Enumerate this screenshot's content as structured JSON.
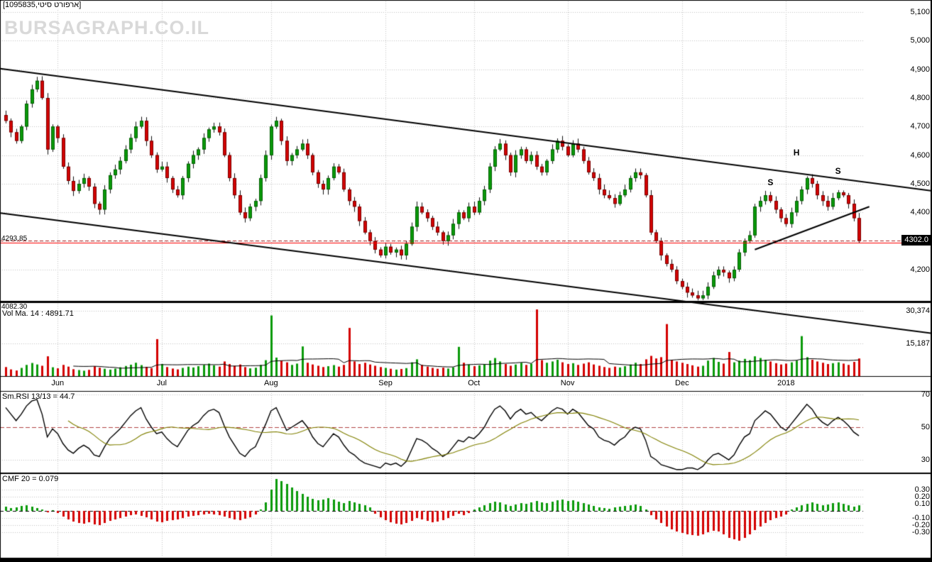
{
  "header": {
    "title": "[1095835,ארפורט סיטי]",
    "watermark": "BURSAGRAPH.CO.IL"
  },
  "price_panel": {
    "axis_labels": [
      {
        "label": "5,100",
        "value": 5100
      },
      {
        "label": "5,000",
        "value": 5000
      },
      {
        "label": "4,900",
        "value": 4900
      },
      {
        "label": "4,800",
        "value": 4800
      },
      {
        "label": "4,700",
        "value": 4700
      },
      {
        "label": "4,600",
        "value": 4600
      },
      {
        "label": "4,500",
        "value": 4500
      },
      {
        "label": "4,400",
        "value": 4400
      },
      {
        "label": "4,200",
        "value": 4200
      }
    ],
    "grid_levels": [
      4200,
      4300,
      4400,
      4500,
      4600,
      4700,
      4800,
      4900,
      5000,
      5100
    ],
    "last_price_label": "4302.0",
    "last_price": 4302.0,
    "support_label": "4293.85",
    "support_price": 4293.85,
    "low_label": "4082.30",
    "price_lines": [
      {
        "value": 4302.0,
        "color": "#aa2222",
        "style": "dashed"
      },
      {
        "value": 4293.85,
        "color": "#ff0000",
        "style": "solid"
      }
    ],
    "trendlines": [
      {
        "i1": -1,
        "p1": 4902,
        "i2": 179,
        "p2": 4473
      },
      {
        "i1": -1,
        "p1": 4398,
        "i2": 179,
        "p2": 3975
      },
      {
        "i1": 144,
        "p1": 4270,
        "i2": 166,
        "p2": 4420
      }
    ],
    "pattern_labels": [
      {
        "text": "S",
        "index": 147,
        "price": 4505
      },
      {
        "text": "H",
        "index": 152,
        "price": 4610
      },
      {
        "text": "S",
        "index": 160,
        "price": 4545
      }
    ]
  },
  "volume_panel": {
    "label": "Vol Ma. 14 : 4891.71",
    "axis_max": 30374,
    "axis_labels": [
      {
        "label": "30,374",
        "value": 30374
      },
      {
        "label": "15,187",
        "value": 15187
      }
    ]
  },
  "rsi_panel": {
    "label": "Sm.RSI 13/13 = 44.7",
    "axis_labels": [
      {
        "label": "70",
        "value": 70
      },
      {
        "label": "50",
        "value": 50
      },
      {
        "label": "30",
        "value": 30
      }
    ],
    "mid_value": 50,
    "grid_values": [
      70,
      30
    ]
  },
  "cmf_panel": {
    "label": "CMF 20 = 0.079",
    "axis_labels": [
      {
        "label": "0.30",
        "value": 0.3
      },
      {
        "label": "0.20",
        "value": 0.2
      },
      {
        "label": "0.10",
        "value": 0.1
      },
      {
        "label": "-0.10",
        "value": -0.1
      },
      {
        "label": "-0.20",
        "value": -0.2
      },
      {
        "label": "-0.30",
        "value": -0.3
      }
    ],
    "grid_values": [
      0.3,
      0.2,
      0.1,
      -0.1,
      -0.2,
      -0.3
    ]
  },
  "x_axis": {
    "months": [
      {
        "label": "Jun",
        "index": 10
      },
      {
        "label": "Jul",
        "index": 30
      },
      {
        "label": "Aug",
        "index": 51
      },
      {
        "label": "Sep",
        "index": 73
      },
      {
        "label": "Oct",
        "index": 90
      },
      {
        "label": "Nov",
        "index": 108
      },
      {
        "label": "Dec",
        "index": 130
      },
      {
        "label": "2018",
        "index": 150
      }
    ]
  },
  "colors": {
    "up": "#0a9a0a",
    "up_edge": "#056005",
    "down": "#d40000",
    "down_edge": "#7a0000",
    "wick": "#111111",
    "trend": "#000000",
    "grid": "#c4c4c4",
    "rsi": "#000000",
    "rsi_signal": "#808000",
    "rsi_mid": "#b24444",
    "volume_ma": "#000000",
    "zero_line": "#000000"
  },
  "chart_data": [
    {
      "type": "candlestick",
      "name": "price",
      "title": "[1095835,ארפורט סיטי]",
      "ylim": [
        4080,
        5150
      ],
      "first_open": 4740,
      "closes": [
        4720,
        4680,
        4650,
        4700,
        4780,
        4830,
        4860,
        4800,
        4620,
        4700,
        4660,
        4560,
        4510,
        4475,
        4500,
        4520,
        4490,
        4430,
        4410,
        4480,
        4530,
        4550,
        4580,
        4620,
        4660,
        4700,
        4720,
        4650,
        4600,
        4550,
        4560,
        4520,
        4480,
        4460,
        4520,
        4570,
        4600,
        4620,
        4660,
        4690,
        4700,
        4680,
        4600,
        4520,
        4460,
        4400,
        4380,
        4420,
        4440,
        4520,
        4600,
        4700,
        4720,
        4650,
        4580,
        4600,
        4620,
        4640,
        4600,
        4540,
        4500,
        4480,
        4520,
        4560,
        4540,
        4480,
        4440,
        4420,
        4370,
        4330,
        4300,
        4270,
        4250,
        4280,
        4260,
        4270,
        4250,
        4290,
        4350,
        4420,
        4400,
        4380,
        4350,
        4330,
        4300,
        4320,
        4360,
        4400,
        4380,
        4420,
        4400,
        4440,
        4480,
        4560,
        4620,
        4640,
        4600,
        4540,
        4600,
        4620,
        4580,
        4600,
        4560,
        4540,
        4580,
        4620,
        4650,
        4630,
        4600,
        4640,
        4620,
        4580,
        4540,
        4520,
        4480,
        4460,
        4450,
        4430,
        4460,
        4480,
        4520,
        4540,
        4530,
        4460,
        4330,
        4300,
        4250,
        4220,
        4200,
        4160,
        4140,
        4120,
        4110,
        4100,
        4110,
        4140,
        4180,
        4200,
        4190,
        4170,
        4200,
        4260,
        4300,
        4320,
        4420,
        4440,
        4460,
        4440,
        4410,
        4380,
        4360,
        4400,
        4440,
        4480,
        4520,
        4500,
        4460,
        4440,
        4420,
        4450,
        4470,
        4460,
        4430,
        4380,
        4302
      ]
    },
    {
      "type": "bar",
      "name": "volume",
      "ylim": [
        0,
        31000
      ],
      "values": [
        4200,
        3100,
        2600,
        3800,
        5200,
        6100,
        5400,
        4800,
        9200,
        4100,
        3600,
        5200,
        4400,
        3200,
        2800,
        2500,
        2900,
        4600,
        3900,
        3400,
        3000,
        3500,
        4100,
        4700,
        5300,
        6200,
        5100,
        4300,
        3700,
        17200,
        5600,
        4200,
        3500,
        3100,
        3800,
        4400,
        4000,
        4600,
        5200,
        5800,
        5000,
        4400,
        6800,
        5600,
        4800,
        5400,
        4200,
        3600,
        3900,
        5200,
        7400,
        28200,
        8600,
        7200,
        6400,
        5200,
        5800,
        13800,
        6200,
        5400,
        4800,
        4200,
        4600,
        5100,
        4400,
        5200,
        22400,
        6800,
        5600,
        6200,
        5400,
        4800,
        4200,
        3800,
        3400,
        3000,
        3300,
        3700,
        6400,
        7800,
        5200,
        4400,
        3800,
        3400,
        3900,
        3500,
        4100,
        13600,
        6200,
        5400,
        4600,
        5000,
        5600,
        7200,
        8400,
        6800,
        5600,
        4800,
        5400,
        6200,
        5200,
        5800,
        31000,
        7400,
        6200,
        6800,
        7600,
        6400,
        5600,
        6000,
        5200,
        5800,
        6400,
        5400,
        4800,
        4200,
        3800,
        4400,
        4000,
        4600,
        5400,
        6200,
        5600,
        7800,
        9400,
        8200,
        8800,
        24200,
        7600,
        6800,
        6200,
        5600,
        5000,
        4400,
        4800,
        7200,
        8400,
        6600,
        5800,
        11200,
        6400,
        7200,
        8000,
        7400,
        9200,
        8400,
        7600,
        6800,
        6000,
        5400,
        5800,
        6400,
        7200,
        18600,
        8800,
        7600,
        6800,
        6200,
        5600,
        6000,
        6400,
        5800,
        5200,
        6600,
        8200
      ]
    },
    {
      "type": "line",
      "name": "Sm.RSI 13/13",
      "ylim": [
        20,
        80
      ],
      "final": 44.7,
      "values": [
        62,
        58,
        54,
        58,
        63,
        66,
        67,
        58,
        44,
        49,
        46,
        40,
        36,
        34,
        37,
        39,
        37,
        33,
        32,
        38,
        43,
        46,
        49,
        53,
        57,
        60,
        62,
        55,
        50,
        46,
        47,
        43,
        40,
        38,
        43,
        48,
        51,
        53,
        57,
        60,
        61,
        59,
        51,
        44,
        39,
        34,
        32,
        36,
        38,
        45,
        52,
        60,
        62,
        55,
        48,
        50,
        52,
        54,
        50,
        44,
        40,
        38,
        42,
        46,
        44,
        39,
        35,
        33,
        30,
        28,
        27,
        26,
        25,
        28,
        27,
        28,
        26,
        29,
        36,
        43,
        42,
        40,
        37,
        35,
        32,
        34,
        38,
        42,
        41,
        44,
        43,
        46,
        50,
        56,
        61,
        63,
        60,
        55,
        59,
        61,
        58,
        59,
        56,
        54,
        57,
        60,
        62,
        61,
        58,
        61,
        59,
        55,
        51,
        49,
        44,
        42,
        41,
        39,
        42,
        44,
        48,
        50,
        49,
        42,
        32,
        30,
        27,
        26,
        25,
        24,
        24,
        25,
        25,
        24,
        26,
        30,
        33,
        34,
        32,
        30,
        33,
        39,
        44,
        46,
        54,
        57,
        60,
        58,
        54,
        50,
        48,
        52,
        56,
        60,
        64,
        61,
        56,
        53,
        51,
        54,
        56,
        54,
        51,
        47,
        44.7
      ]
    },
    {
      "type": "bar",
      "name": "CMF 20",
      "ylim": [
        -0.45,
        0.5
      ],
      "final": 0.079,
      "values": [
        0.06,
        0.04,
        0.05,
        0.07,
        0.08,
        0.06,
        0.04,
        0.02,
        -0.02,
        0.01,
        -0.03,
        -0.08,
        -0.12,
        -0.15,
        -0.17,
        -0.18,
        -0.16,
        -0.19,
        -0.2,
        -0.17,
        -0.14,
        -0.12,
        -0.1,
        -0.08,
        -0.06,
        -0.05,
        -0.07,
        -0.09,
        -0.12,
        -0.15,
        -0.16,
        -0.14,
        -0.13,
        -0.12,
        -0.1,
        -0.08,
        -0.07,
        -0.06,
        -0.05,
        -0.04,
        -0.05,
        -0.06,
        -0.08,
        -0.1,
        -0.12,
        -0.13,
        -0.11,
        -0.09,
        -0.05,
        0.02,
        0.12,
        0.3,
        0.45,
        0.42,
        0.38,
        0.33,
        0.28,
        0.24,
        0.2,
        0.17,
        0.15,
        0.16,
        0.18,
        0.16,
        0.13,
        0.11,
        0.14,
        0.12,
        0.1,
        0.08,
        0.05,
        -0.04,
        -0.09,
        -0.13,
        -0.16,
        -0.18,
        -0.19,
        -0.17,
        -0.14,
        -0.1,
        -0.12,
        -0.14,
        -0.16,
        -0.15,
        -0.13,
        -0.1,
        -0.07,
        -0.04,
        -0.06,
        -0.03,
        0.02,
        0.05,
        0.08,
        0.11,
        0.13,
        0.12,
        0.09,
        0.07,
        0.09,
        0.11,
        0.1,
        0.12,
        0.14,
        0.12,
        0.11,
        0.13,
        0.15,
        0.16,
        0.14,
        0.15,
        0.13,
        0.11,
        0.09,
        0.07,
        0.05,
        0.04,
        0.03,
        0.05,
        0.06,
        0.07,
        0.08,
        0.09,
        0.07,
        0.02,
        -0.06,
        -0.12,
        -0.17,
        -0.22,
        -0.26,
        -0.29,
        -0.31,
        -0.33,
        -0.34,
        -0.35,
        -0.33,
        -0.3,
        -0.28,
        -0.29,
        -0.33,
        -0.38,
        -0.4,
        -0.42,
        -0.38,
        -0.33,
        -0.27,
        -0.22,
        -0.17,
        -0.13,
        -0.1,
        -0.08,
        -0.05,
        0.02,
        0.05,
        0.08,
        0.1,
        0.12,
        0.1,
        0.08,
        0.09,
        0.11,
        0.12,
        0.1,
        0.08,
        0.06,
        0.079
      ]
    }
  ]
}
